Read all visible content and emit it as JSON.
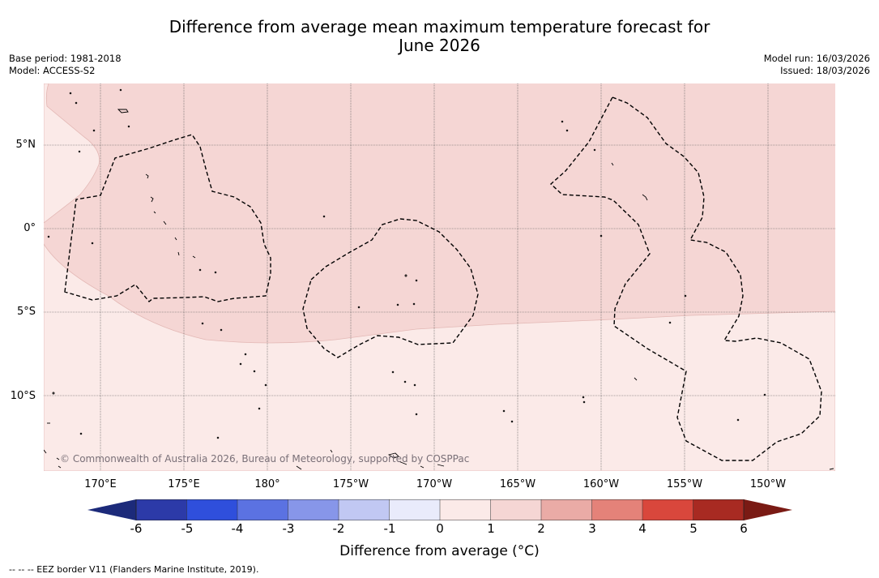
{
  "header": {
    "title_line1": "Difference from average mean maximum temperature forecast for",
    "title_line2": "June 2026",
    "base_period": "Base period: 1981-2018",
    "model": "Model: ACCESS-S2",
    "model_run": "Model run: 16/03/2026",
    "issued": "Issued: 18/03/2026"
  },
  "map": {
    "lat_labels": [
      "5°N",
      "0°",
      "5°S",
      "10°S"
    ],
    "lon_labels": [
      "170°E",
      "175°E",
      "180°",
      "175°W",
      "170°W",
      "165°W",
      "160°W",
      "155°W",
      "150°W"
    ],
    "attribution": "© Commonwealth of Australia 2026, Bureau of Meteorology, supported by COSPPac",
    "colors": {
      "warm_1_2": "#f5d6d4",
      "warm_0_1": "#fbeae8",
      "eez_border": "#000000",
      "grid": "#555555"
    }
  },
  "colorbar": {
    "ticks": [
      "-6",
      "-5",
      "-4",
      "-3",
      "-2",
      "-1",
      "0",
      "1",
      "2",
      "3",
      "4",
      "5",
      "6"
    ],
    "colors": [
      "#2c3aa8",
      "#2f4fdc",
      "#5b72e2",
      "#8796e9",
      "#c1c8f3",
      "#e9ebfb",
      "#fbeae8",
      "#f5d6d4",
      "#eaaba6",
      "#e48279",
      "#d9473c",
      "#a82a22"
    ],
    "under_color": "#1c2a7a",
    "over_color": "#7a1a14",
    "label": "Difference from average (°C)"
  },
  "legend": {
    "text": "--  --  -- EEZ border V11 (Flanders Marine Institute, 2019)."
  }
}
